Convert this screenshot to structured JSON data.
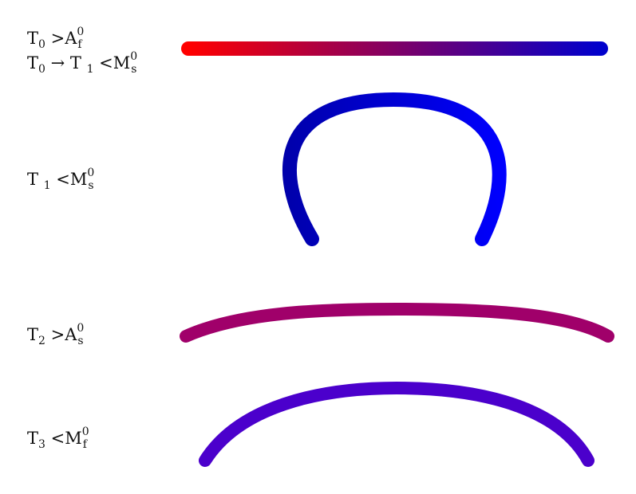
{
  "labels": [
    {
      "id": "state-0a",
      "parts": [
        {
          "t": "T"
        },
        {
          "sub": "0"
        },
        {
          "t": " >A"
        },
        {
          "sup": "0",
          "sub": "f"
        }
      ]
    },
    {
      "id": "state-0b",
      "parts": [
        {
          "t": "T"
        },
        {
          "sub": "0"
        },
        {
          "t": " → T "
        },
        {
          "sub": "1"
        },
        {
          "t": " <M"
        },
        {
          "sup": "0",
          "sub": "s"
        }
      ]
    },
    {
      "id": "state-1",
      "parts": [
        {
          "t": "T "
        },
        {
          "sub": "1"
        },
        {
          "t": " <M"
        },
        {
          "sup": "0",
          "sub": "s"
        }
      ]
    },
    {
      "id": "state-2",
      "parts": [
        {
          "t": "T"
        },
        {
          "sub": "2"
        },
        {
          "t": " >A"
        },
        {
          "sup": "0",
          "sub": "s"
        }
      ]
    },
    {
      "id": "state-3",
      "parts": [
        {
          "t": "T"
        },
        {
          "sub": "3"
        },
        {
          "t": " <M"
        },
        {
          "sup": "0",
          "sub": "f"
        }
      ]
    }
  ],
  "colors": {
    "bar_gradient_start": "#ff0000",
    "bar_gradient_end": "#0000cc",
    "arch_gradient_start": "#0000aa",
    "arch_gradient_end": "#0000ff",
    "flat_arc": "#a0006a",
    "low_arc": "#4b00cc"
  }
}
